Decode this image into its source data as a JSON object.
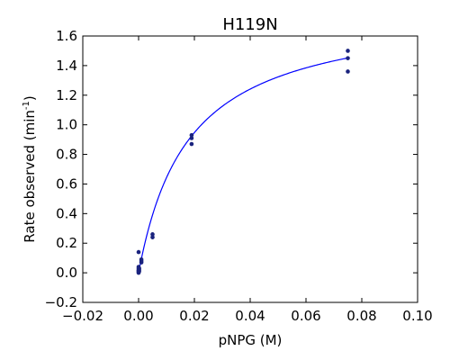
{
  "chart_data": {
    "type": "scatter",
    "title": "H119N",
    "xlabel": "pNPG (M)",
    "ylabel_main": "Rate observed (min",
    "ylabel_sup": "-1",
    "ylabel_end": ")",
    "xlim": [
      -0.02,
      0.1
    ],
    "ylim": [
      -0.2,
      1.6
    ],
    "x_ticks": [
      -0.02,
      0.0,
      0.02,
      0.04,
      0.06,
      0.08,
      0.1
    ],
    "x_tick_labels": [
      "−0.02",
      "0.00",
      "0.02",
      "0.04",
      "0.06",
      "0.08",
      "0.10"
    ],
    "y_ticks": [
      -0.2,
      0.0,
      0.2,
      0.4,
      0.6,
      0.8,
      1.0,
      1.2,
      1.4,
      1.6
    ],
    "y_tick_labels": [
      "−0.2",
      "0.0",
      "0.2",
      "0.4",
      "0.6",
      "0.8",
      "1.0",
      "1.2",
      "1.4",
      "1.6"
    ],
    "grid": false,
    "colors": {
      "points": "#1a237e",
      "fit_line": "#0000ff"
    },
    "series": [
      {
        "kind": "points",
        "x": [
          0.0,
          0.0,
          0.0,
          0.0,
          0.0,
          0.0,
          0.0,
          0.0,
          0.0002,
          0.0002,
          0.0002,
          0.001,
          0.001,
          0.001,
          0.005,
          0.005,
          0.019,
          0.019,
          0.019,
          0.075,
          0.075,
          0.075
        ],
        "y": [
          0.0,
          0.005,
          0.01,
          0.015,
          0.02,
          0.03,
          0.04,
          0.14,
          0.01,
          0.02,
          0.03,
          0.07,
          0.08,
          0.09,
          0.24,
          0.26,
          0.87,
          0.91,
          0.93,
          1.36,
          1.45,
          1.5
        ]
      },
      {
        "kind": "fit",
        "model": "michaelis-menten",
        "vmax": 1.8,
        "km": 0.018
      }
    ]
  }
}
